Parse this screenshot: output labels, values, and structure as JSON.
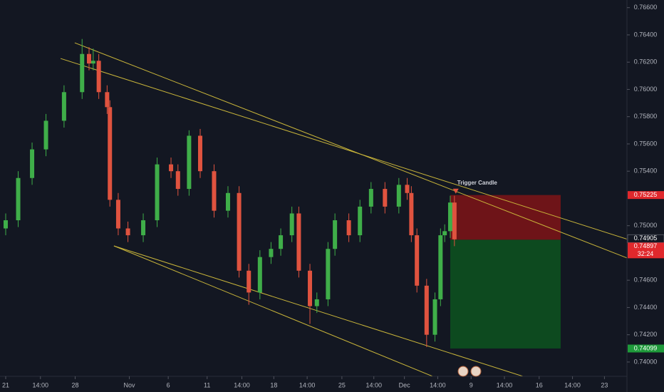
{
  "chart_data": {
    "type": "candlestick",
    "x": [
      0,
      0.9,
      1.9,
      2.9,
      4.2,
      5.5,
      6.0,
      6.3,
      6.7,
      7.3,
      7.5,
      8.1,
      8.8,
      9.9,
      10.9,
      11.9,
      12.4,
      13.2,
      14.0,
      15.0,
      16.0,
      16.8,
      17.5,
      18.3,
      19.1,
      19.8,
      20.6,
      21.1,
      21.9,
      22.4,
      23.2,
      23.7,
      24.7,
      25.5,
      26.3,
      27.3,
      28.3,
      28.9,
      29.2,
      29.6,
      30.3,
      30.9,
      31.3,
      31.6,
      32.0,
      32.3
    ],
    "open": [
      0.7498,
      0.7504,
      0.7535,
      0.7556,
      0.7577,
      0.7598,
      0.7626,
      0.7619,
      0.7621,
      0.7598,
      0.7587,
      0.7519,
      0.7498,
      0.7493,
      0.7504,
      0.7545,
      0.754,
      0.7527,
      0.7566,
      0.754,
      0.7511,
      0.7524,
      0.7467,
      0.7451,
      0.7477,
      0.7483,
      0.7493,
      0.7509,
      0.7467,
      0.7441,
      0.7446,
      0.7483,
      0.7504,
      0.7493,
      0.7514,
      0.7527,
      0.7514,
      0.753,
      0.7524,
      0.7493,
      0.7456,
      0.742,
      0.7446,
      0.7493,
      0.7496,
      0.7517
    ],
    "high": [
      0.7509,
      0.754,
      0.7561,
      0.7582,
      0.7603,
      0.7637,
      0.7631,
      0.763,
      0.7626,
      0.7603,
      0.7592,
      0.7524,
      0.7503,
      0.7509,
      0.755,
      0.755,
      0.7545,
      0.757,
      0.7571,
      0.7545,
      0.7529,
      0.7529,
      0.7472,
      0.7482,
      0.7488,
      0.7498,
      0.7514,
      0.7514,
      0.7472,
      0.7451,
      0.7488,
      0.7509,
      0.7509,
      0.7519,
      0.7532,
      0.7532,
      0.7535,
      0.7535,
      0.7529,
      0.7498,
      0.7461,
      0.7451,
      0.7498,
      0.7501,
      0.7522,
      0.7522
    ],
    "low": [
      0.7493,
      0.7499,
      0.753,
      0.7551,
      0.7572,
      0.7593,
      0.7614,
      0.7614,
      0.7593,
      0.7582,
      0.7514,
      0.7493,
      0.7488,
      0.7488,
      0.7499,
      0.7535,
      0.7522,
      0.7522,
      0.7535,
      0.7506,
      0.7506,
      0.7462,
      0.7442,
      0.7446,
      0.7472,
      0.7478,
      0.7488,
      0.7462,
      0.7428,
      0.7436,
      0.7441,
      0.7478,
      0.7488,
      0.7488,
      0.7509,
      0.7509,
      0.7509,
      0.7519,
      0.7488,
      0.7451,
      0.7411,
      0.7415,
      0.7441,
      0.7488,
      0.7491,
      0.7485
    ],
    "close": [
      0.7504,
      0.7535,
      0.7556,
      0.7577,
      0.7598,
      0.7626,
      0.7619,
      0.7621,
      0.7598,
      0.7587,
      0.7519,
      0.7498,
      0.7493,
      0.7504,
      0.7545,
      0.754,
      0.7527,
      0.7566,
      0.754,
      0.7511,
      0.7524,
      0.7467,
      0.7451,
      0.7477,
      0.7483,
      0.7493,
      0.7509,
      0.7467,
      0.7441,
      0.7446,
      0.7483,
      0.7504,
      0.7493,
      0.7514,
      0.7527,
      0.7514,
      0.753,
      0.7524,
      0.7493,
      0.7456,
      0.742,
      0.7446,
      0.7493,
      0.7496,
      0.7517,
      0.749
    ],
    "up_color": "#3fae49",
    "down_color": "#e0533f",
    "xlim": [
      -0.41,
      44.72
    ],
    "ylim": [
      0.73895,
      0.76656
    ],
    "xticks": [
      {
        "value": 0,
        "label": "21"
      },
      {
        "value": 2.5,
        "label": "14:00"
      },
      {
        "value": 5,
        "label": "28"
      },
      {
        "value": 8.9,
        "label": "Nov"
      },
      {
        "value": 11.7,
        "label": "6"
      },
      {
        "value": 14.5,
        "label": "11"
      },
      {
        "value": 17,
        "label": "14:00"
      },
      {
        "value": 19.3,
        "label": "18"
      },
      {
        "value": 21.7,
        "label": "14:00"
      },
      {
        "value": 24.2,
        "label": "25"
      },
      {
        "value": 26.5,
        "label": "14:00"
      },
      {
        "value": 28.7,
        "label": "Dec"
      },
      {
        "value": 31.1,
        "label": "14:00"
      },
      {
        "value": 33.5,
        "label": "9"
      },
      {
        "value": 35.9,
        "label": "14:00"
      },
      {
        "value": 38.4,
        "label": "16"
      },
      {
        "value": 40.8,
        "label": "14:00"
      },
      {
        "value": 43.1,
        "label": "23"
      }
    ],
    "yticks": [
      {
        "value": 0.766,
        "label": "0.76600"
      },
      {
        "value": 0.764,
        "label": "0.76400"
      },
      {
        "value": 0.762,
        "label": "0.76200"
      },
      {
        "value": 0.76,
        "label": "0.76000"
      },
      {
        "value": 0.758,
        "label": "0.75800"
      },
      {
        "value": 0.756,
        "label": "0.75600"
      },
      {
        "value": 0.754,
        "label": "0.75400"
      },
      {
        "value": 0.75,
        "label": "0.75000"
      },
      {
        "value": 0.746,
        "label": "0.74600"
      },
      {
        "value": 0.744,
        "label": "0.74400"
      },
      {
        "value": 0.742,
        "label": "0.74200"
      },
      {
        "value": 0.74,
        "label": "0.74000"
      }
    ],
    "trendlines": [
      {
        "x": [
          4.97,
          47.38
        ],
        "y": [
          0.76342,
          0.74658
        ],
        "color": "#c9b53a"
      },
      {
        "x": [
          3.95,
          47.38
        ],
        "y": [
          0.76227,
          0.74815
        ],
        "color": "#c9b53a"
      },
      {
        "x": [
          7.79,
          30.97
        ],
        "y": [
          0.74852,
          0.73885
        ],
        "color": "#c9b53a"
      },
      {
        "x": [
          7.79,
          37.54
        ],
        "y": [
          0.74852,
          0.73885
        ],
        "color": "#c9b53a"
      }
    ],
    "position": {
      "x": [
        32.0,
        39.95
      ],
      "entry": 0.74897,
      "stop": 0.75225,
      "target": 0.74099,
      "stop_color": "#6e1418",
      "target_color": "#0d4a1f"
    },
    "annotation": {
      "text": "Trigger Candle",
      "x": 32.4,
      "y": 0.7524
    },
    "price_labels": [
      {
        "value": 0.75225,
        "label": "0.75225",
        "color": "#e0282c"
      },
      {
        "value": 0.74905,
        "label": "0.74905",
        "color": "#131722"
      },
      {
        "value": 0.74897,
        "label": "0.74897",
        "color": "#e0282c",
        "countdown": "32:24"
      },
      {
        "value": 0.74099,
        "label": "0.74099",
        "color": "#1e9a3a"
      }
    ]
  }
}
